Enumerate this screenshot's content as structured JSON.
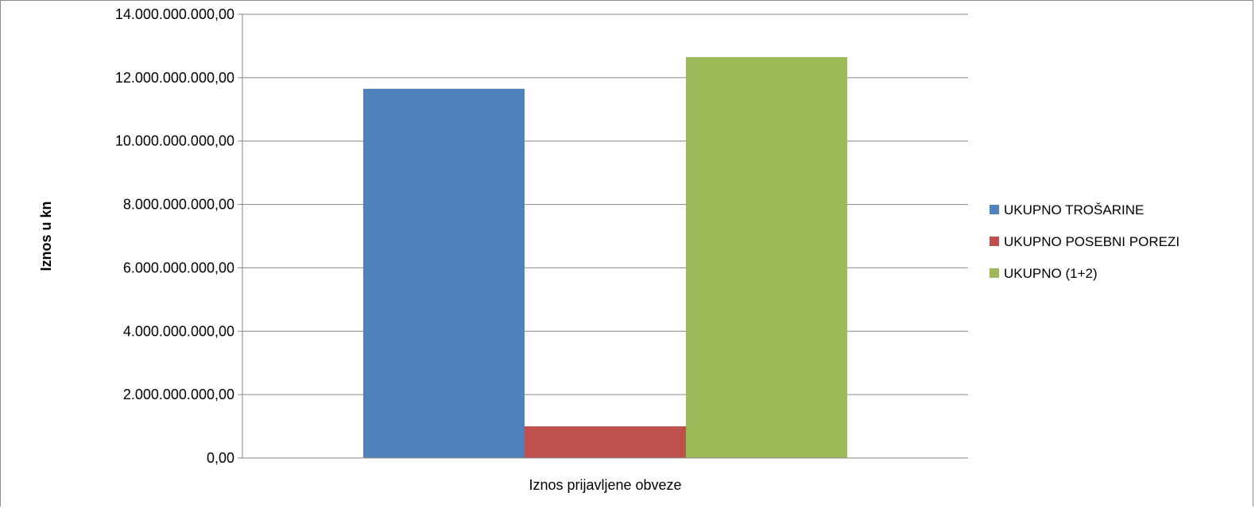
{
  "chart_data": {
    "type": "bar",
    "title": "",
    "xlabel": "Iznos prijavljene obveze",
    "ylabel": "Iznos u kn",
    "categories": [
      "Iznos prijavljene obveze"
    ],
    "series": [
      {
        "name": "UKUPNO TROŠARINE",
        "color": "#4f81bd",
        "values": [
          11650000000
        ]
      },
      {
        "name": "UKUPNO POSEBNI POREZI",
        "color": "#c0504d",
        "values": [
          1000000000
        ]
      },
      {
        "name": "UKUPNO (1+2)",
        "color": "#9bbb59",
        "values": [
          12650000000
        ]
      }
    ],
    "ylim": [
      0,
      14000000000
    ],
    "yticks": [
      0,
      2000000000,
      4000000000,
      6000000000,
      8000000000,
      10000000000,
      12000000000,
      14000000000
    ],
    "ytick_labels": [
      "0,00",
      "2.000.000.000,00",
      "4.000.000.000,00",
      "6.000.000.000,00",
      "8.000.000.000,00",
      "10.000.000.000,00",
      "12.000.000.000,00",
      "14.000.000.000,00"
    ],
    "grid": true,
    "legend_position": "right"
  }
}
